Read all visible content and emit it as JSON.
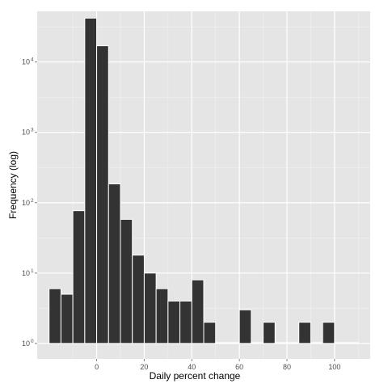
{
  "chart_data": {
    "type": "bar",
    "title": "",
    "xlabel": "Daily percent change",
    "ylabel": "Frequency (log)",
    "y_scale": "log10",
    "xlim": [
      -25,
      115
    ],
    "ylim": [
      1,
      100000
    ],
    "x_ticks": [
      {
        "value": 0,
        "label": "0"
      },
      {
        "value": 20,
        "label": "20"
      },
      {
        "value": 40,
        "label": "40"
      },
      {
        "value": 60,
        "label": "60"
      },
      {
        "value": 80,
        "label": "80"
      },
      {
        "value": 100,
        "label": "100"
      }
    ],
    "y_ticks": [
      {
        "value": 1,
        "base": "10",
        "exp": "0"
      },
      {
        "value": 10,
        "base": "10",
        "exp": "1"
      },
      {
        "value": 100,
        "base": "10",
        "exp": "2"
      },
      {
        "value": 1000,
        "base": "10",
        "exp": "3"
      },
      {
        "value": 10000,
        "base": "10",
        "exp": "4"
      }
    ],
    "grid": true,
    "panel_background": "#e5e5e5",
    "bar_color": "#333333",
    "bar_outline": "#ffffff",
    "bin_width": 5,
    "bins": [
      {
        "center": -17.5,
        "count": 6
      },
      {
        "center": -12.5,
        "count": 5
      },
      {
        "center": -7.5,
        "count": 77
      },
      {
        "center": -2.5,
        "count": 42000
      },
      {
        "center": 2.5,
        "count": 17000
      },
      {
        "center": 7.5,
        "count": 185
      },
      {
        "center": 12.5,
        "count": 58
      },
      {
        "center": 17.5,
        "count": 18
      },
      {
        "center": 22.5,
        "count": 10
      },
      {
        "center": 27.5,
        "count": 6
      },
      {
        "center": 32.5,
        "count": 4
      },
      {
        "center": 37.5,
        "count": 4
      },
      {
        "center": 42.5,
        "count": 8
      },
      {
        "center": 47.5,
        "count": 2
      },
      {
        "center": 52.5,
        "count": 1
      },
      {
        "center": 57.5,
        "count": 1
      },
      {
        "center": 62.5,
        "count": 3
      },
      {
        "center": 67.5,
        "count": 1
      },
      {
        "center": 72.5,
        "count": 2
      },
      {
        "center": 77.5,
        "count": 1
      },
      {
        "center": 82.5,
        "count": 1
      },
      {
        "center": 87.5,
        "count": 2
      },
      {
        "center": 92.5,
        "count": 1
      },
      {
        "center": 97.5,
        "count": 2
      },
      {
        "center": 102.5,
        "count": 1
      },
      {
        "center": 107.5,
        "count": 1
      }
    ]
  }
}
